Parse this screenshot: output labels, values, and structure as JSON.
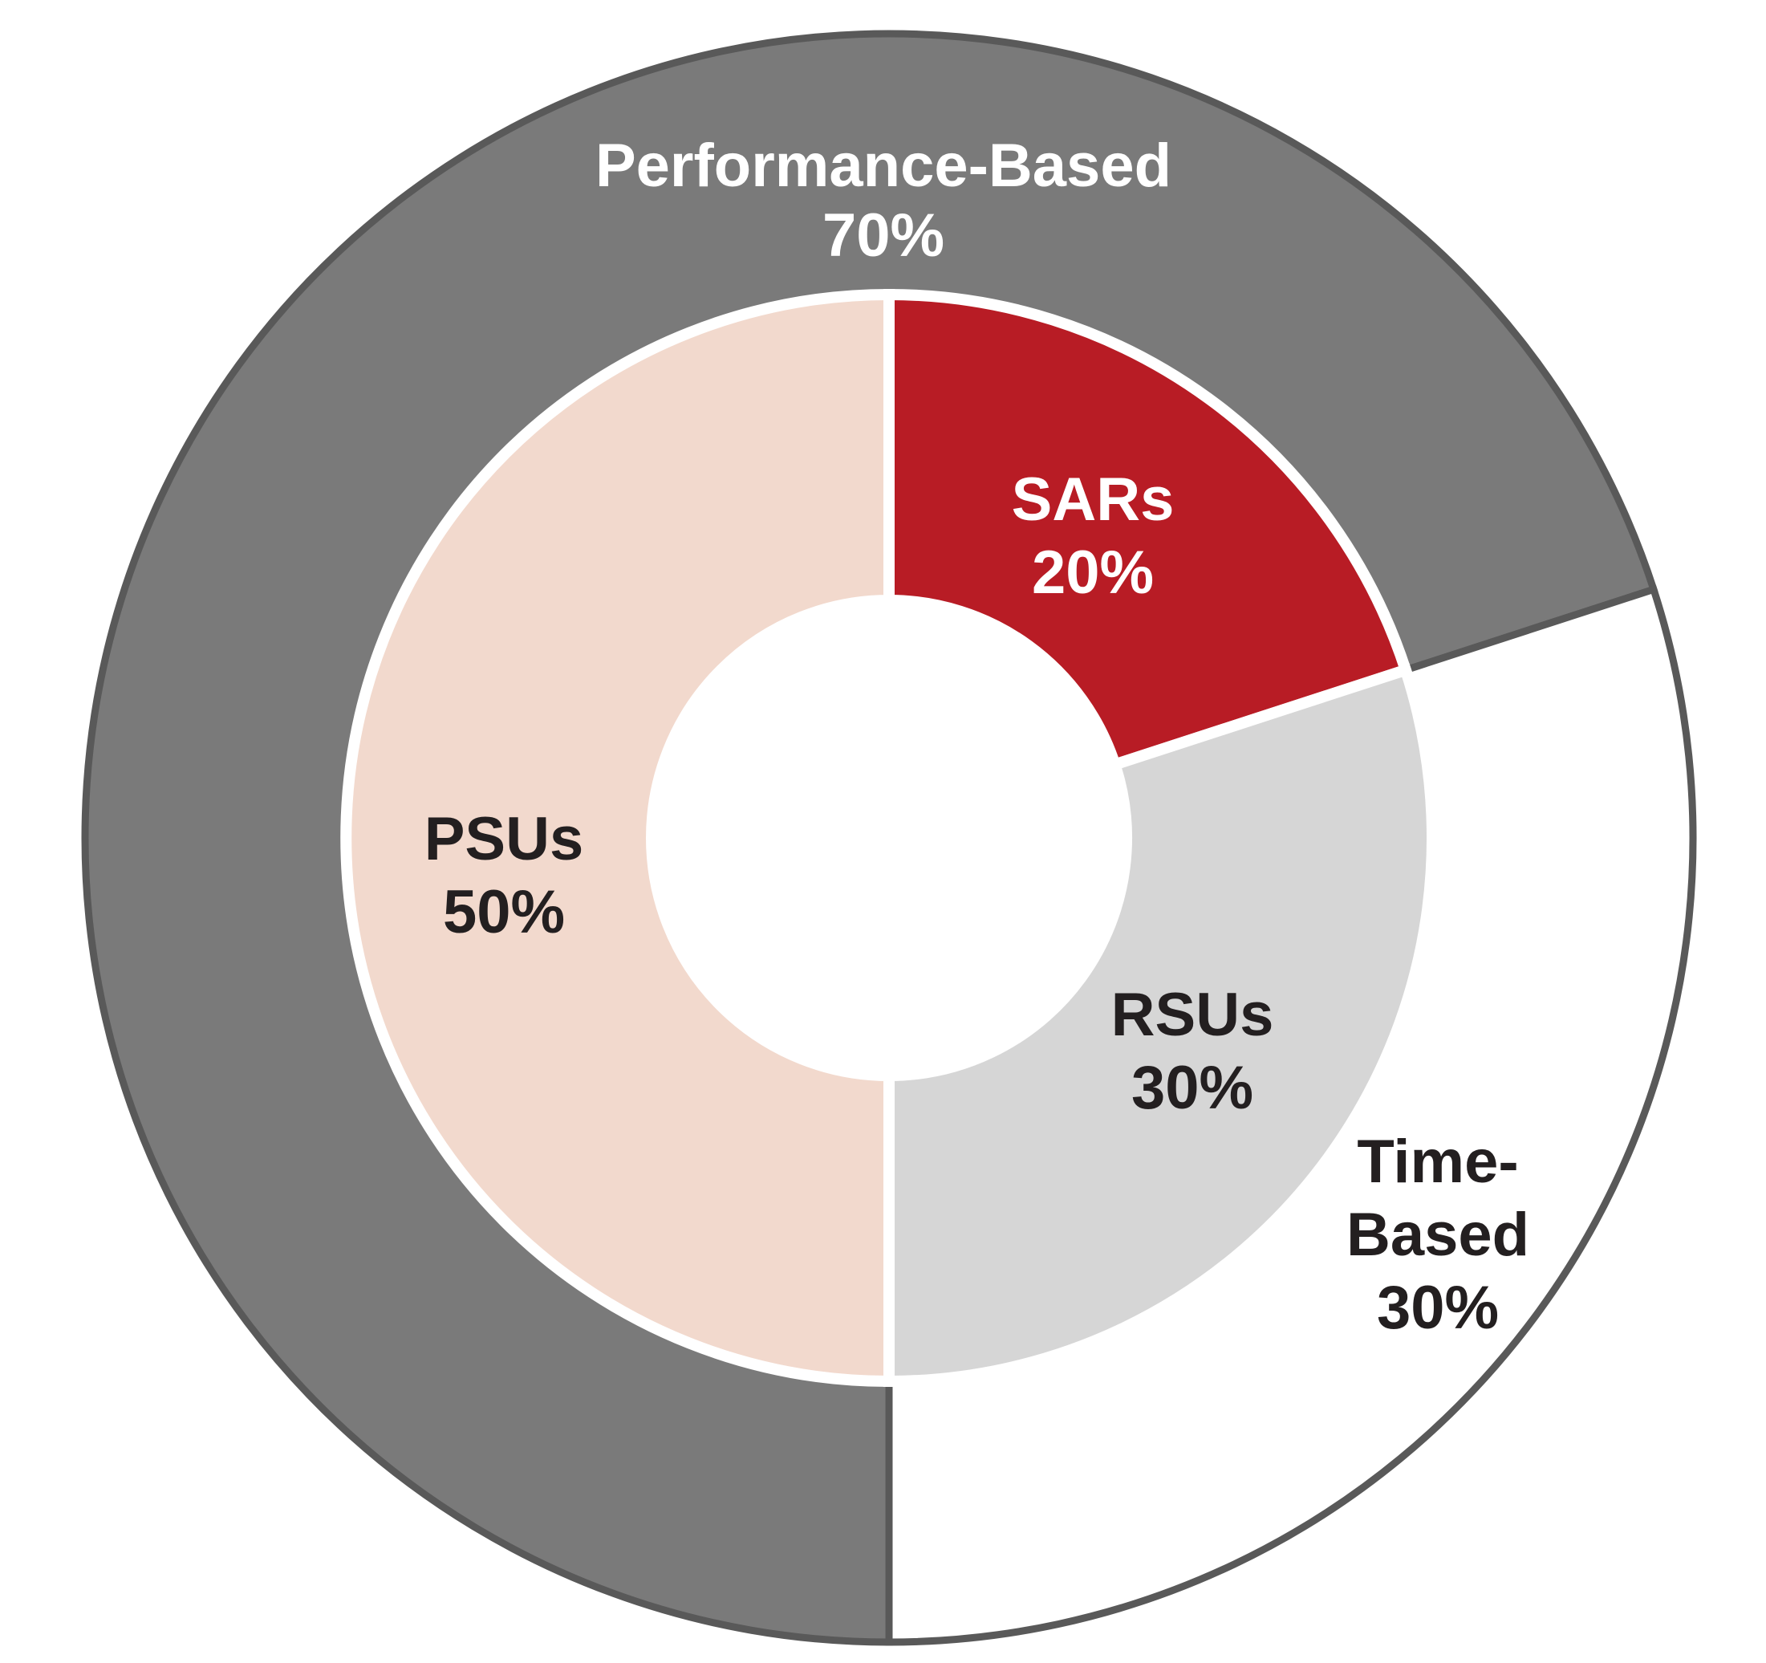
{
  "chart_data": {
    "type": "nested-donut",
    "rings": [
      {
        "categories": [
          "Performance-Based",
          "Time-Based"
        ],
        "values": [
          70,
          30
        ],
        "value_labels": [
          "70%",
          "30%"
        ],
        "colors": [
          "#7a7a7a",
          "#ffffff"
        ],
        "label_colors": [
          "#ffffff",
          "#231f20"
        ]
      },
      {
        "categories": [
          "SARs",
          "RSUs",
          "PSUs"
        ],
        "values": [
          20,
          30,
          50
        ],
        "value_labels": [
          "20%",
          "30%",
          "50%"
        ],
        "colors": [
          "#b81c25",
          "#d6d6d6",
          "#f2d9cd"
        ],
        "label_colors": [
          "#ffffff",
          "#231f20",
          "#231f20"
        ]
      }
    ]
  }
}
